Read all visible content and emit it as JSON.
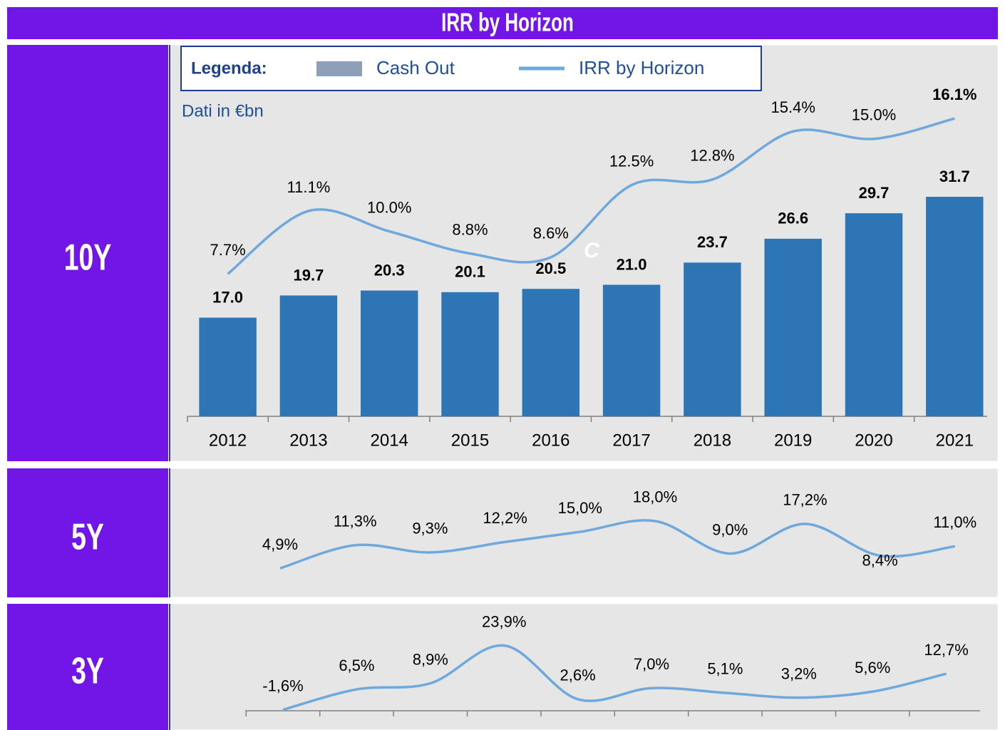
{
  "header": {
    "title": "IRR by Horizon"
  },
  "chart_data": [
    {
      "type": "bar",
      "title": "10Y",
      "legend_title": "Legenda:",
      "subtitle": "Dati in €bn",
      "annotations": [
        "C"
      ],
      "categories": [
        "2012",
        "2013",
        "2014",
        "2015",
        "2016",
        "2017",
        "2018",
        "2019",
        "2020",
        "2021"
      ],
      "series": [
        {
          "name": "Cash Out",
          "type": "bar",
          "color": "#2e75b6",
          "legend_color": "#8da0b8",
          "values": [
            17.0,
            19.7,
            20.3,
            20.1,
            20.5,
            21.0,
            23.7,
            26.6,
            29.7,
            31.7
          ],
          "value_labels": [
            "17.0",
            "19.7",
            "20.3",
            "20.1",
            "20.5",
            "21.0",
            "23.7",
            "26.6",
            "29.7",
            "31.7"
          ]
        },
        {
          "name": "IRR by Horizon",
          "type": "line",
          "axis": "y2",
          "color": "#6fa8dc",
          "values": [
            7.7,
            11.1,
            10.0,
            8.8,
            8.6,
            12.5,
            12.8,
            15.4,
            15.0,
            16.1
          ],
          "value_labels": [
            "7.7%",
            "11.1%",
            "10.0%",
            "8.8%",
            "8.6%",
            "12.5%",
            "12.8%",
            "15.4%",
            "15.0%",
            "16.1%"
          ]
        }
      ],
      "ylim": [
        5,
        50
      ],
      "y2lim": [
        0,
        20
      ]
    },
    {
      "type": "line",
      "title": "5Y",
      "series": [
        {
          "color": "#6fa8dc",
          "values": [
            4.9,
            11.3,
            9.3,
            12.2,
            15.0,
            18.0,
            9.0,
            17.2,
            8.4,
            11.0
          ],
          "value_labels": [
            "4,9%",
            "11,3%",
            "9,3%",
            "12,2%",
            "15,0%",
            "18,0%",
            "9,0%",
            "17,2%",
            "8,4%",
            "11,0%"
          ]
        }
      ],
      "ylim": [
        0,
        32
      ]
    },
    {
      "type": "line",
      "title": "3Y",
      "series": [
        {
          "color": "#6fa8dc",
          "values": [
            -1.6,
            6.5,
            8.9,
            23.9,
            2.6,
            7.0,
            5.1,
            3.2,
            5.6,
            12.7
          ],
          "value_labels": [
            "-1,6%",
            "6,5%",
            "8,9%",
            "23,9%",
            "2,6%",
            "7,0%",
            "5,1%",
            "3,2%",
            "5,6%",
            "12,7%"
          ]
        }
      ],
      "ylim": [
        -2,
        30
      ]
    }
  ]
}
